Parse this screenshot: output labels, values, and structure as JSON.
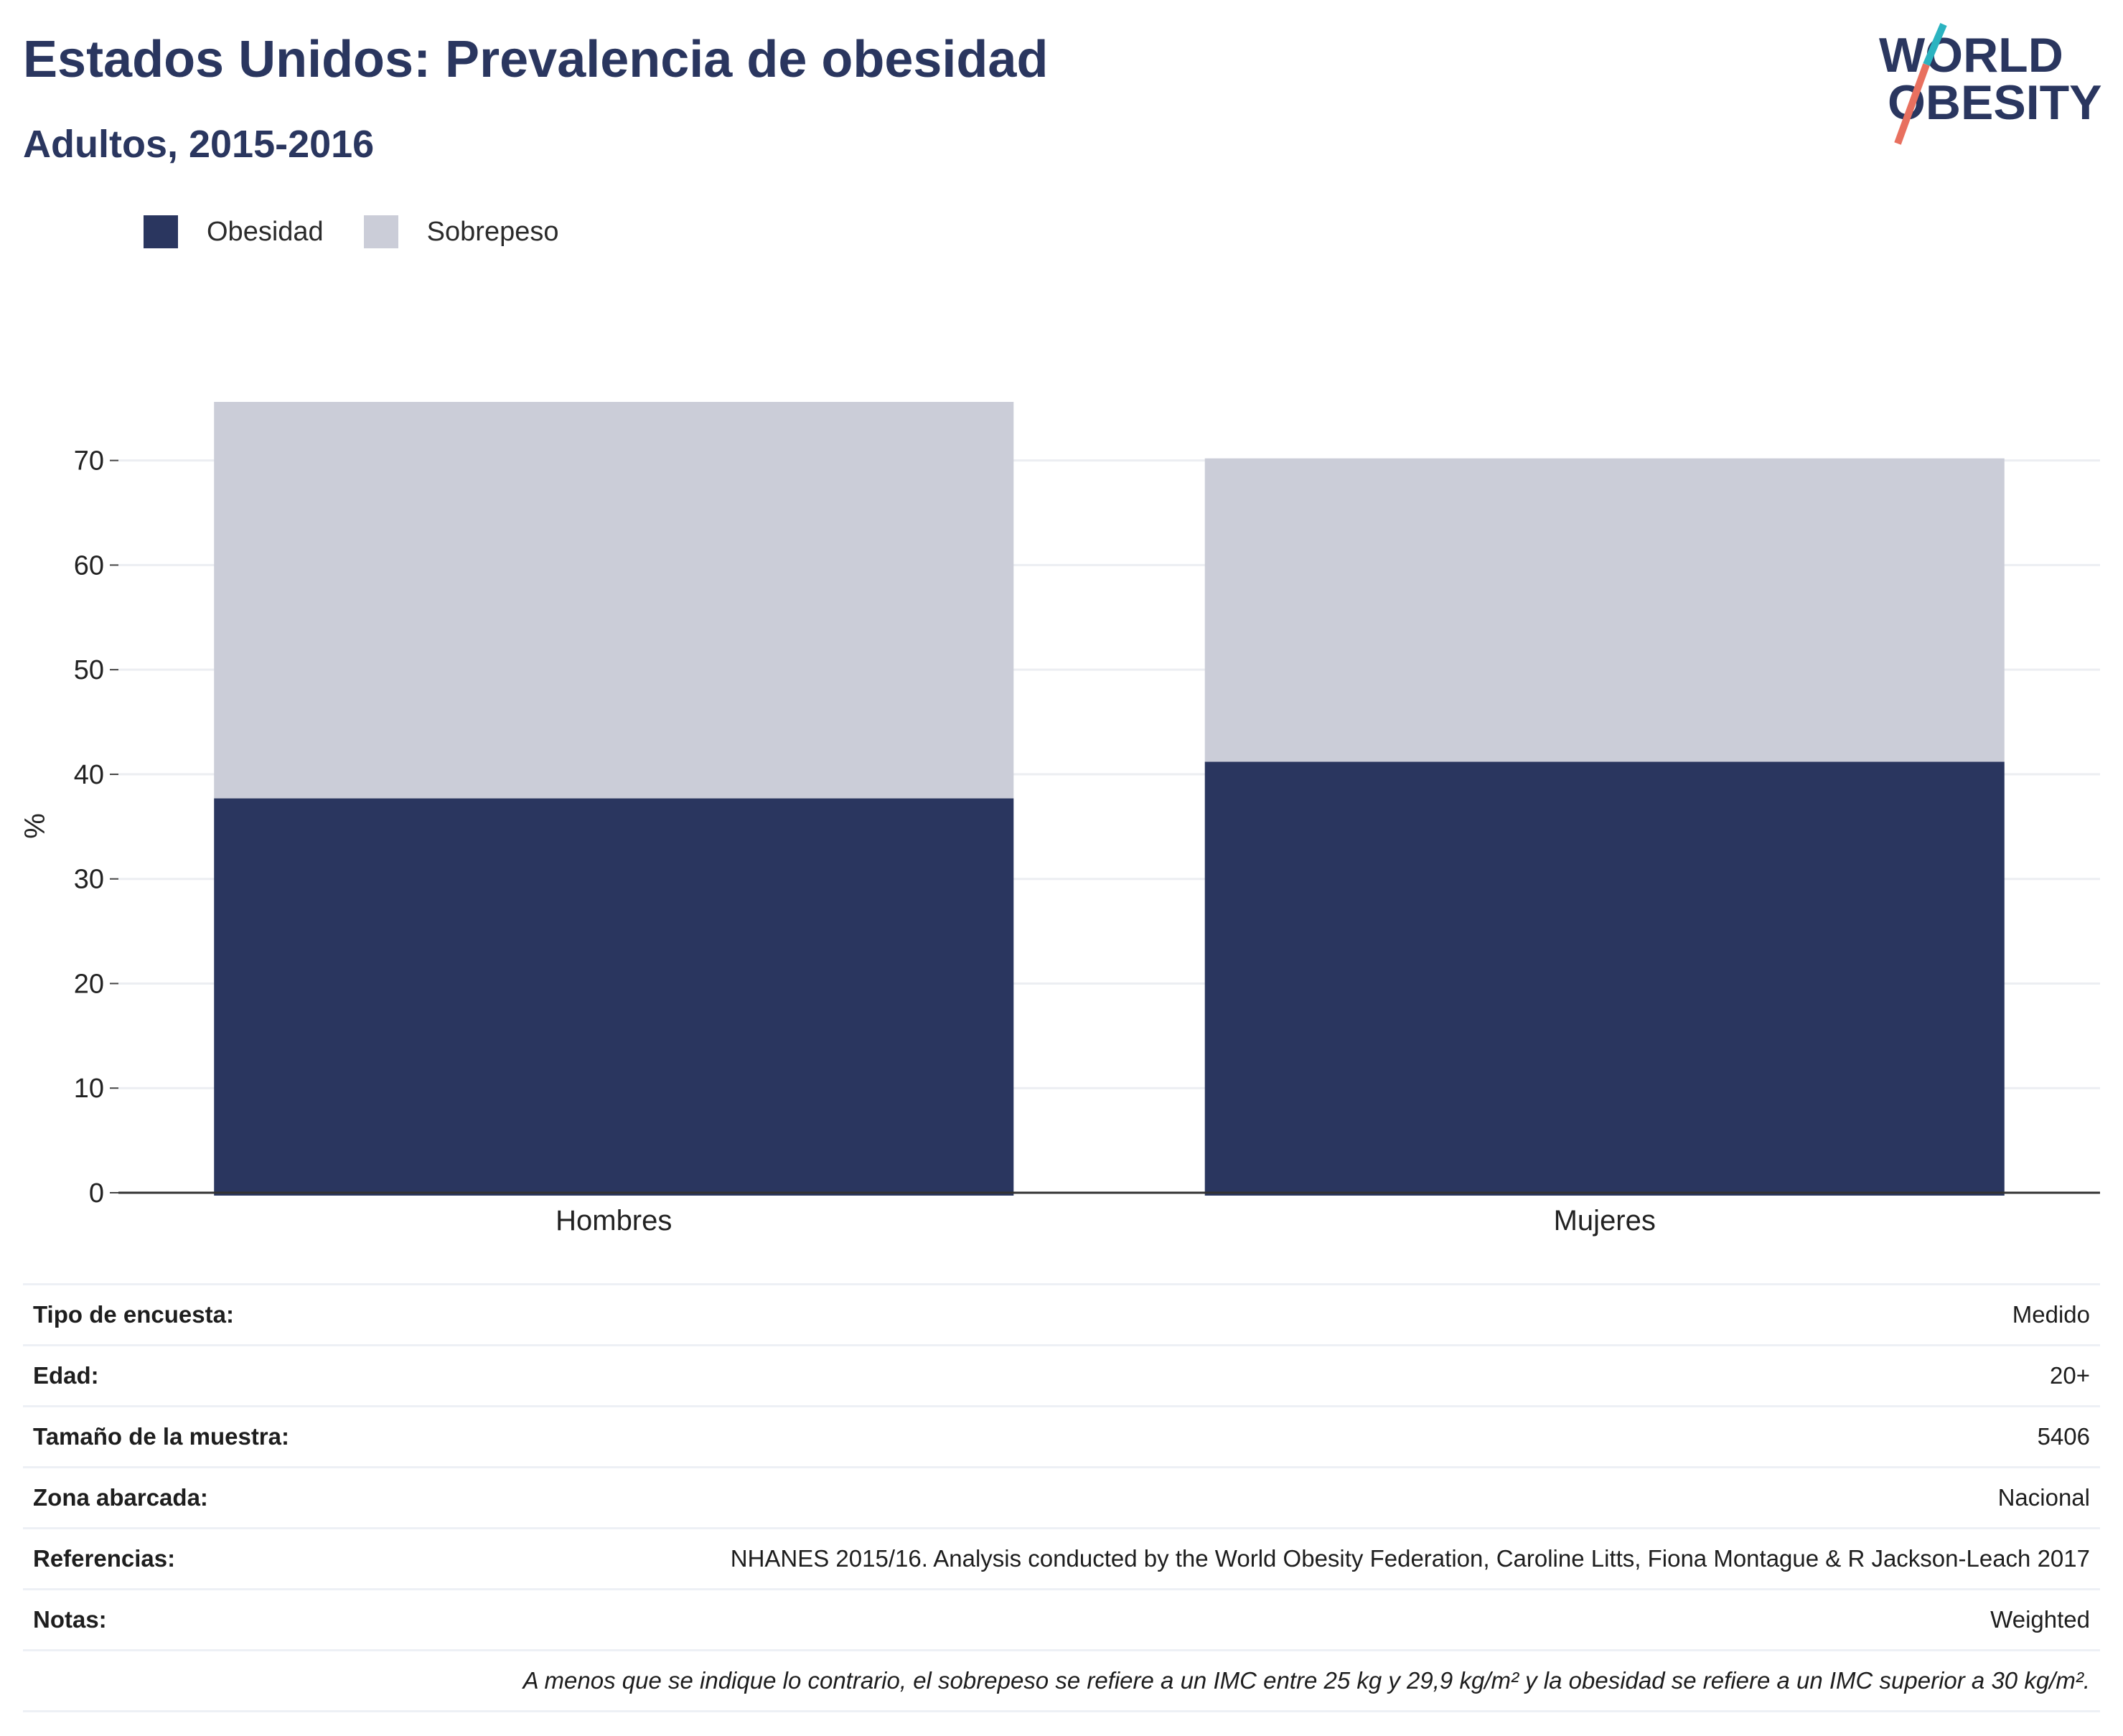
{
  "header": {
    "title": "Estados Unidos: Prevalencia de obesidad",
    "subtitle": "Adultos, 2015-2016"
  },
  "logo": {
    "line1": "WORLD",
    "line2": "OBESITY",
    "text_color": "#2a365f",
    "accent_colors": [
      "#2bb3c0",
      "#e8705f"
    ]
  },
  "legend": [
    {
      "label": "Obesidad",
      "color": "#2a365f"
    },
    {
      "label": "Sobrepeso",
      "color": "#cbcdd8"
    }
  ],
  "chart_data": {
    "type": "bar",
    "stacked": true,
    "categories": [
      "Hombres",
      "Mujeres"
    ],
    "series": [
      {
        "name": "Obesidad",
        "values": [
          37.7,
          41.2
        ],
        "color": "#2a365f"
      },
      {
        "name": "Sobrepeso",
        "values": [
          37.9,
          29.0
        ],
        "color": "#cbcdd8"
      }
    ],
    "ylabel": "%",
    "ylim": [
      0,
      75.6
    ],
    "yticks": [
      0,
      10,
      20,
      30,
      40,
      50,
      60,
      70
    ],
    "grid": true,
    "legend_position": "top-left"
  },
  "info": [
    {
      "key": "Tipo de encuesta:",
      "value": "Medido"
    },
    {
      "key": "Edad:",
      "value": "20+"
    },
    {
      "key": "Tamaño de la muestra:",
      "value": "5406"
    },
    {
      "key": "Zona abarcada:",
      "value": "Nacional"
    },
    {
      "key": "Referencias:",
      "value": "NHANES 2015/16. Analysis conducted by the World Obesity Federation, Caroline Litts, Fiona Montague & R Jackson-Leach 2017"
    },
    {
      "key": "Notas:",
      "value": "Weighted"
    }
  ],
  "footnote": "A menos que se indique lo contrario, el sobrepeso se refiere a un IMC entre 25 kg y 29,9 kg/m² y la obesidad se refiere a un IMC superior a 30 kg/m²."
}
